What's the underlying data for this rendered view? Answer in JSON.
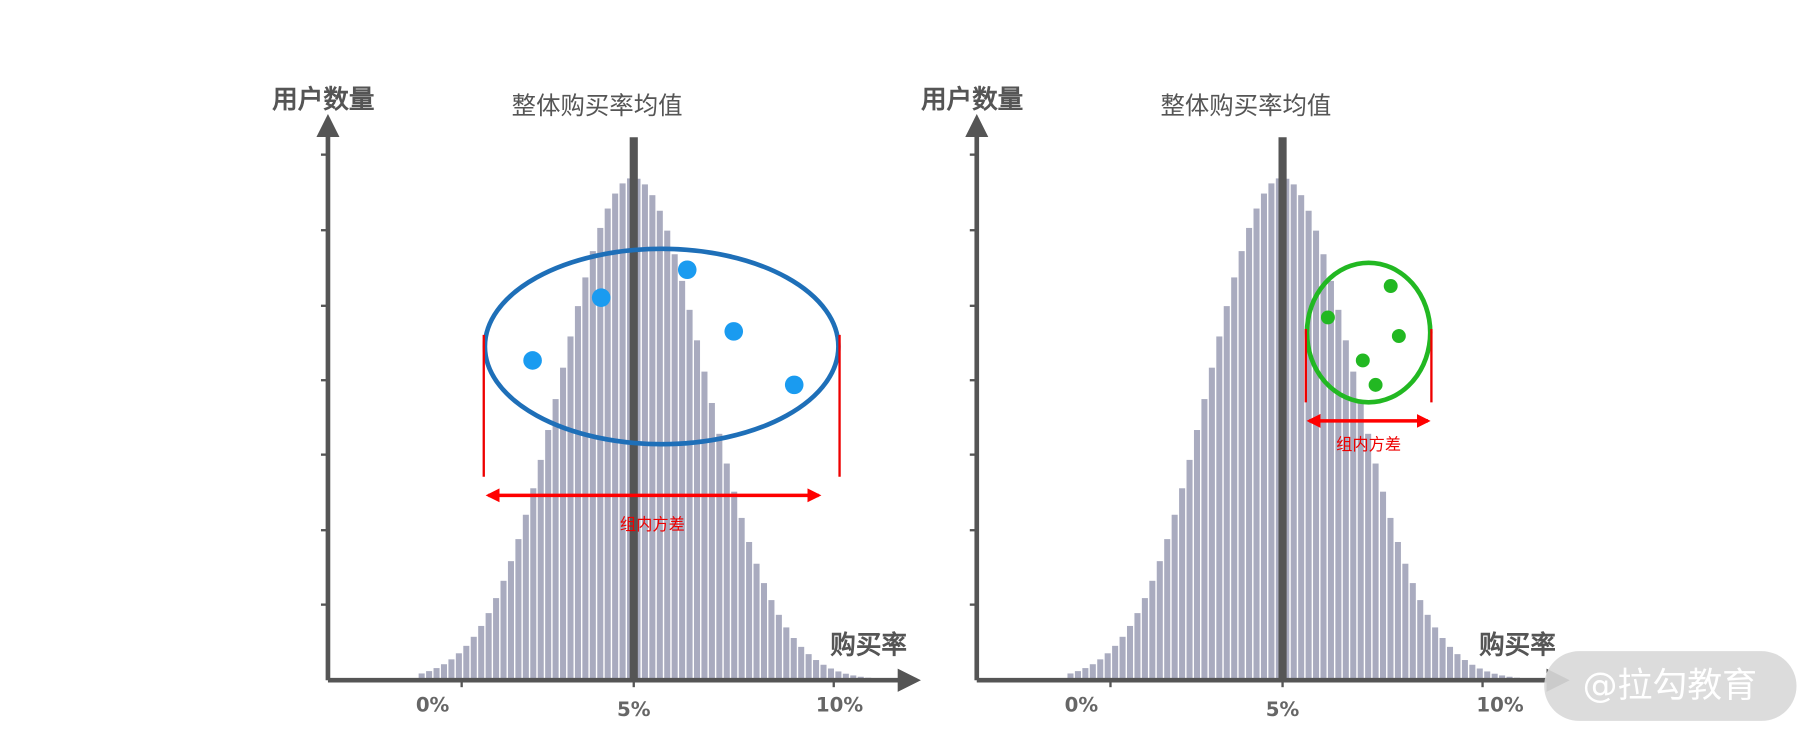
{
  "panels": [
    {
      "y_axis_label": "用户数量",
      "mean_label": "整体购买率均值",
      "x_axis_label": "购买率",
      "x_tick_labels": [
        "0%",
        "5%",
        "10%"
      ],
      "variance_label": "组内方差"
    },
    {
      "y_axis_label": "用户数量",
      "mean_label": "整体购买率均值",
      "x_axis_label": "购买率",
      "x_tick_labels": [
        "0%",
        "5%",
        "10%"
      ],
      "variance_label": "组内方差"
    }
  ],
  "watermark": "@拉勾教育"
}
